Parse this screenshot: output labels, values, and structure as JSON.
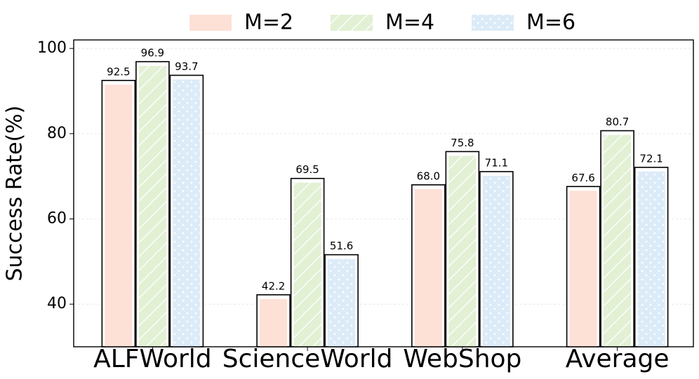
{
  "chart_data": {
    "type": "bar",
    "categories": [
      "ALFWorld",
      "ScienceWorld",
      "WebShop",
      "Average"
    ],
    "y_label": "Success Rate(%)",
    "series": [
      {
        "name": "M=2",
        "color": "#fde0d6",
        "values": [
          92.5,
          42.2,
          68.0,
          67.6
        ],
        "value_labels": [
          "92.5",
          "42.2",
          "68.0",
          "67.6"
        ]
      },
      {
        "name": "M=4",
        "color": "#e2f0d4",
        "values": [
          96.9,
          69.5,
          75.8,
          80.7
        ],
        "value_labels": [
          "96.9",
          "69.5",
          "75.8",
          "80.7"
        ]
      },
      {
        "name": "M=6",
        "color": "#dcebf8",
        "values": [
          93.7,
          51.6,
          71.1,
          72.1
        ],
        "value_labels": [
          "93.7",
          "51.6",
          "71.1",
          "72.1"
        ]
      }
    ],
    "ylim": [
      30,
      102
    ],
    "yticks": [
      40,
      60,
      80,
      100
    ],
    "grid": true,
    "legend": "top"
  }
}
